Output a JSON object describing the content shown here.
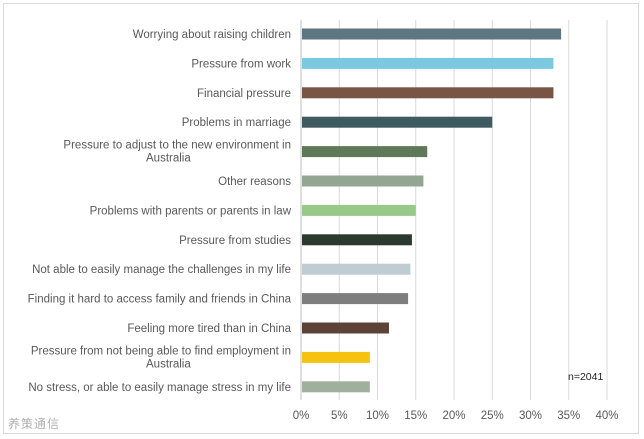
{
  "chart_data": {
    "type": "bar",
    "orientation": "horizontal",
    "categories": [
      "Worrying about raising children",
      "Pressure from work",
      "Financial pressure",
      "Problems in marriage",
      "Pressure to adjust to the new environment in Australia",
      "Other reasons",
      "Problems with parents or parents in law",
      "Pressure from studies",
      "Not able to easily manage the challenges in my life",
      "Finding it hard to access family and friends in China",
      "Feeling more tired than in China",
      "Pressure from not being able to find employment in Australia",
      "No stress, or able to easily manage stress in my life"
    ],
    "category_lines": [
      [
        "Worrying about raising children"
      ],
      [
        "Pressure from work"
      ],
      [
        "Financial pressure"
      ],
      [
        "Problems in marriage"
      ],
      [
        "Pressure to adjust to the new environment in",
        "Australia"
      ],
      [
        "Other reasons"
      ],
      [
        "Problems with parents or parents in law"
      ],
      [
        "Pressure from studies"
      ],
      [
        "Not able to easily manage the challenges in my life"
      ],
      [
        "Finding it hard to access family and friends in China"
      ],
      [
        "Feeling more tired than in China"
      ],
      [
        "Pressure from not being able to find employment in",
        "Australia"
      ],
      [
        "No stress, or able to easily manage stress in my life"
      ]
    ],
    "values": [
      34,
      33,
      33,
      25,
      16.5,
      16,
      15,
      14.5,
      14.3,
      14,
      11.5,
      9,
      9
    ],
    "colors": [
      "#5e7680",
      "#7cc8df",
      "#7a5444",
      "#3f5a61",
      "#5f7858",
      "#93a692",
      "#98c988",
      "#2b3a2c",
      "#bfcdd2",
      "#7e7e7e",
      "#5e4238",
      "#f5c210",
      "#9fb09d"
    ],
    "xlim": [
      0,
      40
    ],
    "xticks": [
      "0%",
      "5%",
      "10%",
      "15%",
      "20%",
      "25%",
      "30%",
      "35%",
      "40%"
    ],
    "grid": true,
    "annotation": "n=2041",
    "title": "",
    "xlabel": "",
    "ylabel": ""
  },
  "watermark": "养策通信"
}
